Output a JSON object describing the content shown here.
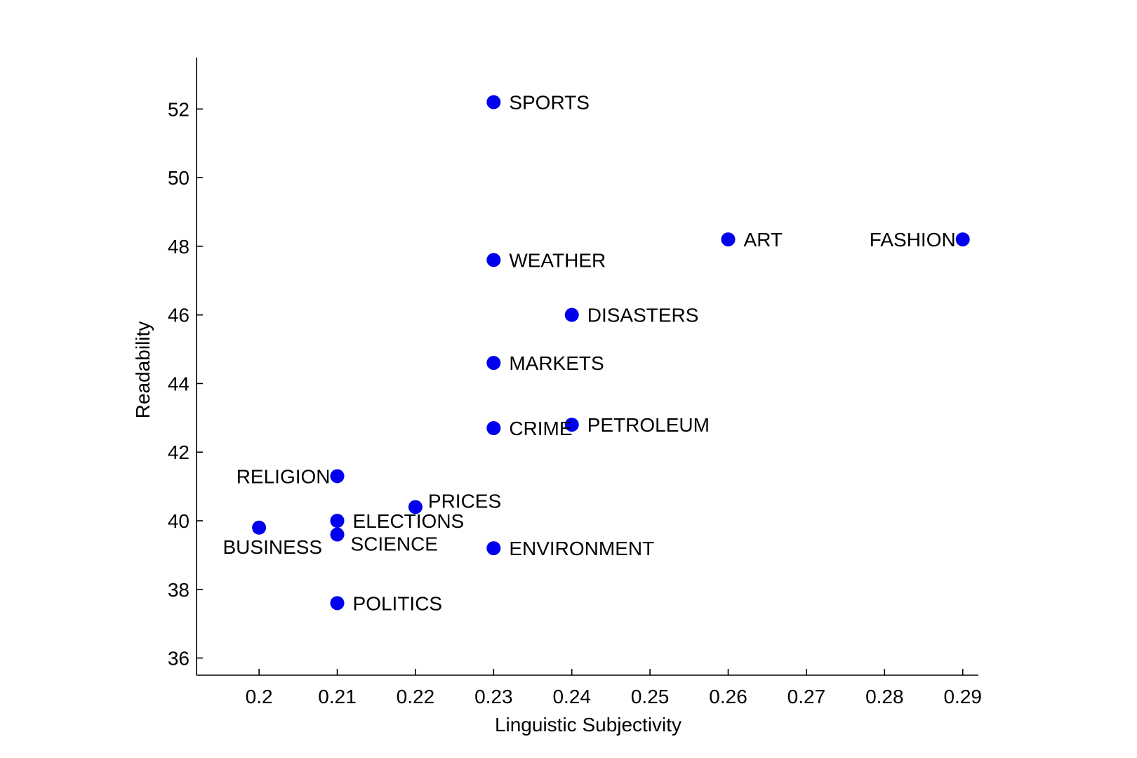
{
  "chart_data": {
    "type": "scatter",
    "xlabel": "Linguistic Subjectivity",
    "ylabel": "Readability",
    "xlim": [
      0.192,
      0.292
    ],
    "ylim": [
      35.5,
      53.5
    ],
    "xticks": [
      "0.2",
      "0.21",
      "0.22",
      "0.23",
      "0.24",
      "0.25",
      "0.26",
      "0.27",
      "0.28",
      "0.29"
    ],
    "yticks": [
      "36",
      "38",
      "40",
      "42",
      "44",
      "46",
      "48",
      "50",
      "52"
    ],
    "grid": false,
    "marker_color": "#0000ee",
    "points": [
      {
        "label": "SPORTS",
        "x": 0.23,
        "y": 52.2,
        "label_side": "right"
      },
      {
        "label": "ART",
        "x": 0.26,
        "y": 48.2,
        "label_side": "right"
      },
      {
        "label": "FASHION",
        "x": 0.29,
        "y": 48.2,
        "label_side": "left"
      },
      {
        "label": "WEATHER",
        "x": 0.23,
        "y": 47.6,
        "label_side": "right"
      },
      {
        "label": "DISASTERS",
        "x": 0.24,
        "y": 46.0,
        "label_side": "right"
      },
      {
        "label": "MARKETS",
        "x": 0.23,
        "y": 44.6,
        "label_side": "right"
      },
      {
        "label": "PETROLEUM",
        "x": 0.24,
        "y": 42.8,
        "label_side": "right"
      },
      {
        "label": "CRIME",
        "x": 0.23,
        "y": 42.7,
        "label_side": "right"
      },
      {
        "label": "RELIGION",
        "x": 0.21,
        "y": 41.3,
        "label_side": "left"
      },
      {
        "label": "PRICES",
        "x": 0.22,
        "y": 40.4,
        "label_side": "right-up"
      },
      {
        "label": "ELECTIONS",
        "x": 0.21,
        "y": 40.0,
        "label_side": "right"
      },
      {
        "label": "BUSINESS",
        "x": 0.2,
        "y": 39.8,
        "label_side": "below-left"
      },
      {
        "label": "SCIENCE",
        "x": 0.21,
        "y": 39.6,
        "label_side": "right-down"
      },
      {
        "label": "ENVIRONMENT",
        "x": 0.23,
        "y": 39.2,
        "label_side": "right"
      },
      {
        "label": "POLITICS",
        "x": 0.21,
        "y": 37.6,
        "label_side": "right"
      }
    ]
  }
}
